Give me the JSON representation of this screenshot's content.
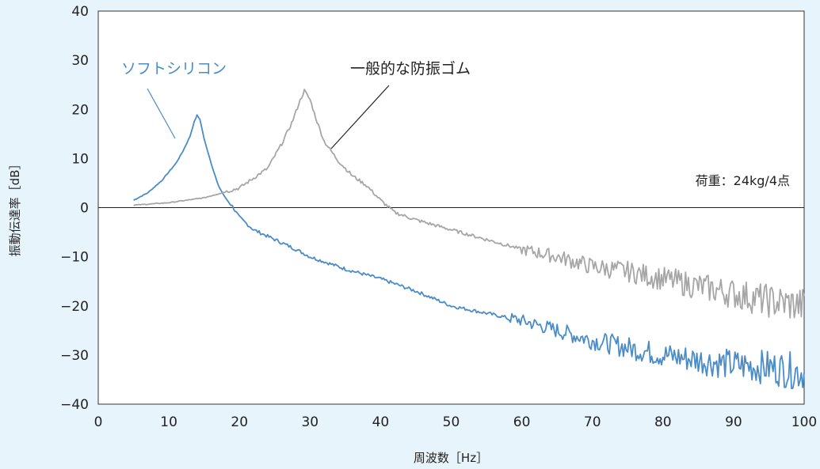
{
  "chart_data": {
    "type": "line",
    "xlabel": "周波数［Hz］",
    "ylabel": "振動伝達率［dB］",
    "xlim": [
      0,
      100
    ],
    "ylim": [
      -40,
      40
    ],
    "x_ticks": [
      "0",
      "10",
      "20",
      "30",
      "40",
      "50",
      "60",
      "70",
      "80",
      "90",
      "100"
    ],
    "y_ticks": [
      "40",
      "30",
      "20",
      "10",
      "0",
      "−10",
      "−20",
      "−30",
      "−40"
    ],
    "grid": false,
    "annotation": "荷重：24kg/4点",
    "series": [
      {
        "name": "ソフトシリコン",
        "color": "#4a8cc8",
        "points": [
          [
            5,
            1.5
          ],
          [
            7,
            3
          ],
          [
            9,
            5.5
          ],
          [
            11,
            9
          ],
          [
            12,
            11.5
          ],
          [
            13,
            14.5
          ],
          [
            13.6,
            17.5
          ],
          [
            14,
            18.8
          ],
          [
            14.4,
            18
          ],
          [
            15,
            14
          ],
          [
            16,
            9
          ],
          [
            17,
            4.5
          ],
          [
            18,
            2
          ],
          [
            19,
            0.3
          ],
          [
            20,
            -2
          ],
          [
            22,
            -4.5
          ],
          [
            25,
            -6.5
          ],
          [
            28,
            -8.5
          ],
          [
            30,
            -10
          ],
          [
            35,
            -12.5
          ],
          [
            40,
            -14.5
          ],
          [
            45,
            -17
          ],
          [
            50,
            -20
          ],
          [
            55,
            -21.5
          ],
          [
            60,
            -23
          ],
          [
            65,
            -25
          ],
          [
            70,
            -27
          ],
          [
            75,
            -28.5
          ],
          [
            80,
            -30
          ],
          [
            85,
            -31
          ],
          [
            90,
            -32
          ],
          [
            95,
            -32.5
          ],
          [
            100,
            -33.5
          ]
        ],
        "noise_from_x": 58
      },
      {
        "name": "一般的な防振ゴム",
        "color": "#a6a6a6",
        "points": [
          [
            5,
            0.5
          ],
          [
            10,
            1
          ],
          [
            15,
            2
          ],
          [
            20,
            4
          ],
          [
            24,
            8
          ],
          [
            26,
            13
          ],
          [
            27.5,
            17.5
          ],
          [
            28.5,
            21.5
          ],
          [
            29.2,
            23.8
          ],
          [
            30,
            22
          ],
          [
            31,
            17.5
          ],
          [
            32,
            13.5
          ],
          [
            34,
            9.5
          ],
          [
            36,
            6.5
          ],
          [
            38,
            4.5
          ],
          [
            40,
            1.5
          ],
          [
            42,
            -1
          ],
          [
            45,
            -2.5
          ],
          [
            50,
            -4.5
          ],
          [
            55,
            -6.5
          ],
          [
            60,
            -8.5
          ],
          [
            65,
            -10
          ],
          [
            70,
            -12
          ],
          [
            75,
            -13
          ],
          [
            80,
            -14.5
          ],
          [
            85,
            -16
          ],
          [
            90,
            -17.5
          ],
          [
            95,
            -19
          ],
          [
            100,
            -20
          ]
        ],
        "noise_from_x": 60
      }
    ]
  }
}
